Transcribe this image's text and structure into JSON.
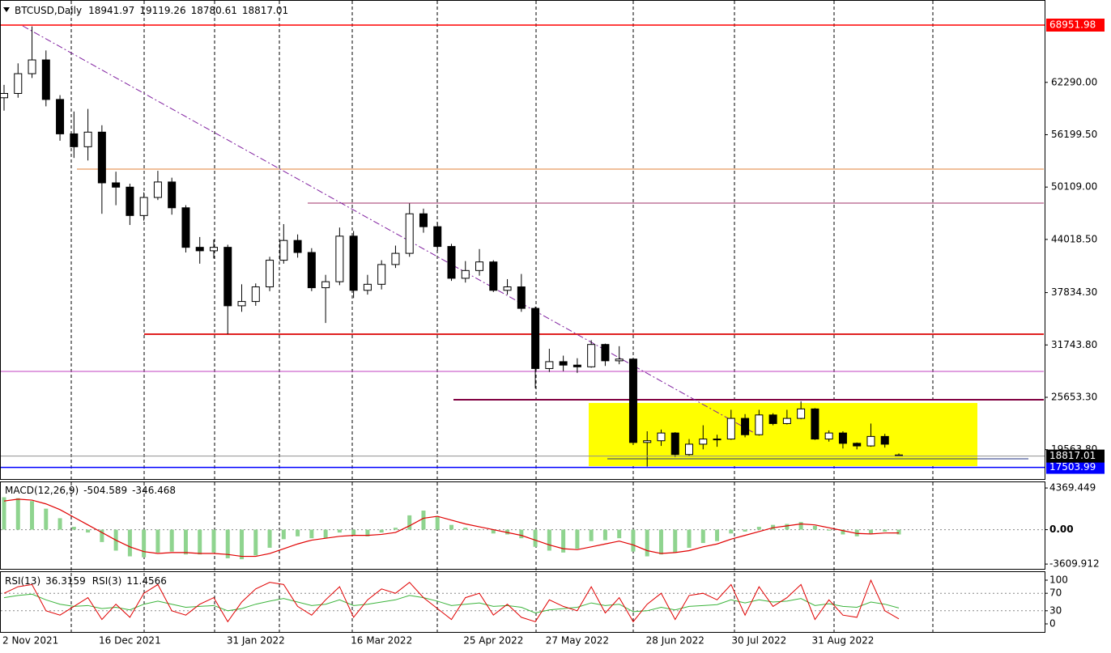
{
  "chart_data": [
    {
      "type": "candlestick",
      "symbol": "BTCUSD,Daily",
      "categories": [
        "2 Nov 2021",
        null,
        null,
        null,
        null,
        null,
        null,
        null,
        null,
        "16 Dec 2021",
        null,
        null,
        null,
        null,
        null,
        null,
        null,
        null,
        "31 Jan 2022",
        null,
        null,
        null,
        null,
        null,
        null,
        null,
        null,
        "16 Mar 2022",
        null,
        null,
        null,
        null,
        null,
        null,
        null,
        "25 Apr 2022",
        null,
        null,
        null,
        null,
        null,
        "27 May 2022",
        null,
        null,
        null,
        null,
        null,
        null,
        "28 Jun 2022",
        null,
        null,
        null,
        null,
        null,
        "30 Jul 2022",
        null,
        null,
        null,
        null,
        null,
        "31 Aug 2022",
        null,
        null,
        null,
        null
      ],
      "open": [
        60500,
        61000,
        63300,
        64900,
        60300,
        56300,
        54800,
        56500,
        50600,
        50100,
        46800,
        48900,
        50700,
        47700,
        43100,
        42700,
        43100,
        36300,
        36800,
        38500,
        41600,
        43900,
        42500,
        38400,
        39100,
        44400,
        38100,
        38800,
        41100,
        42400,
        47000,
        45500,
        43200,
        39500,
        40400,
        41400,
        38100,
        38500,
        36000,
        29000,
        29800,
        29400,
        29200,
        31800,
        29900,
        30100,
        20400,
        20600,
        21500,
        19000,
        20200,
        20800,
        20800,
        23200,
        21300,
        23600,
        22600,
        23200,
        24300,
        20800,
        21500,
        20300,
        20000,
        21100,
        18941.97
      ],
      "high": [
        62000,
        64500,
        68800,
        66000,
        60800,
        58900,
        59200,
        57300,
        51900,
        50500,
        49500,
        52000,
        51200,
        48000,
        44300,
        44000,
        43400,
        38800,
        38900,
        42000,
        45800,
        44600,
        43000,
        39900,
        45400,
        45000,
        39900,
        41600,
        43300,
        48200,
        47600,
        46000,
        43500,
        41500,
        42900,
        41600,
        39400,
        40000,
        36200,
        31300,
        30500,
        30200,
        32300,
        31900,
        31600,
        30200,
        21700,
        21900,
        21600,
        20800,
        22400,
        21300,
        24200,
        23700,
        24200,
        23800,
        24200,
        25200,
        24400,
        21800,
        21700,
        20400,
        22600,
        21400,
        19119.26
      ],
      "low": [
        59000,
        60500,
        62800,
        59500,
        55500,
        53500,
        53200,
        47000,
        48000,
        45700,
        46200,
        48600,
        46900,
        42500,
        41200,
        41800,
        33000,
        35600,
        36300,
        38000,
        41200,
        41900,
        38000,
        34300,
        38700,
        37200,
        37600,
        38200,
        40700,
        42000,
        44800,
        42700,
        39200,
        39000,
        39800,
        37900,
        37600,
        35600,
        26700,
        28600,
        28700,
        28500,
        29100,
        29300,
        29500,
        20100,
        17600,
        20000,
        18700,
        18800,
        19600,
        19900,
        20700,
        21000,
        21200,
        22400,
        22500,
        23100,
        20700,
        20500,
        19700,
        19600,
        19900,
        19800,
        18780.61
      ],
      "close": [
        61000,
        63300,
        64900,
        60300,
        56300,
        54800,
        56500,
        50600,
        50100,
        46800,
        48900,
        50700,
        47700,
        43100,
        42700,
        43100,
        36300,
        36800,
        38500,
        41600,
        43900,
        42500,
        38400,
        39100,
        44400,
        38100,
        38800,
        41100,
        42400,
        47000,
        45500,
        43200,
        39500,
        40400,
        41400,
        38100,
        38500,
        36000,
        29000,
        29800,
        29400,
        29200,
        31800,
        29900,
        30100,
        20400,
        20600,
        21500,
        19000,
        20200,
        20800,
        20800,
        23200,
        21300,
        23600,
        22600,
        23200,
        24300,
        20800,
        21500,
        20300,
        20000,
        21100,
        20200,
        18817.01
      ],
      "up_color": "#ffffff",
      "down_color": "#000000",
      "ylim": [
        16147,
        71870
      ],
      "yticks": [
        {
          "value": 62290,
          "label": "62290.00"
        },
        {
          "value": 56199.5,
          "label": "56199.50"
        },
        {
          "value": 50109,
          "label": "50109.00"
        },
        {
          "value": 44018.5,
          "label": "44018.50"
        },
        {
          "value": 37834.3,
          "label": "37834.30"
        },
        {
          "value": 31743.8,
          "label": "31743.80"
        },
        {
          "value": 25653.3,
          "label": "25653.30"
        },
        {
          "value": 19563.8,
          "label": "19563.80"
        }
      ],
      "levels": [
        {
          "value": 68951.98,
          "color": "#ff0000"
        },
        {
          "value": 17503.99,
          "color": "#0000ff"
        }
      ]
    },
    {
      "type": "macd",
      "title": "MACD(12,26,9)",
      "histogram": [
        3400,
        3300,
        3000,
        2200,
        1200,
        300,
        -300,
        -1300,
        -2200,
        -2800,
        -2900,
        -2400,
        -2300,
        -2600,
        -2600,
        -2400,
        -3000,
        -3100,
        -2700,
        -1900,
        -1000,
        -700,
        -900,
        -900,
        -300,
        -600,
        -700,
        -300,
        200,
        1500,
        2000,
        1400,
        500,
        200,
        0,
        -400,
        -500,
        -900,
        -1800,
        -2200,
        -2400,
        -2000,
        -1200,
        -1100,
        -900,
        -2300,
        -2800,
        -2600,
        -2400,
        -1900,
        -1400,
        -1200,
        -400,
        -200,
        300,
        500,
        600,
        800,
        400,
        -100,
        -500,
        -700,
        -400,
        -200,
        -504.589
      ],
      "signal": [
        3000,
        3200,
        3100,
        2700,
        2100,
        1300,
        500,
        -300,
        -1100,
        -1800,
        -2300,
        -2500,
        -2400,
        -2400,
        -2500,
        -2500,
        -2600,
        -2800,
        -2800,
        -2500,
        -2000,
        -1500,
        -1100,
        -900,
        -700,
        -600,
        -600,
        -500,
        -300,
        400,
        1200,
        1400,
        1000,
        600,
        300,
        0,
        -300,
        -600,
        -1100,
        -1600,
        -2000,
        -2100,
        -1800,
        -1500,
        -1200,
        -1600,
        -2200,
        -2500,
        -2400,
        -2200,
        -1800,
        -1500,
        -1000,
        -600,
        -200,
        200,
        400,
        600,
        500,
        200,
        -100,
        -400,
        -450,
        -350,
        -346.468
      ],
      "histogram_color": "#8fd48f",
      "signal_color": "#e00000",
      "ylim": [
        -4110,
        4970
      ],
      "yticks": [
        4369.449,
        {
          "value": 0,
          "label": "0.00"
        },
        -3609.912
      ]
    },
    {
      "type": "line",
      "series": [
        {
          "name": "RSI(13)",
          "color": "#3cb43c",
          "values": [
            60,
            65,
            68,
            55,
            45,
            40,
            42,
            35,
            38,
            32,
            45,
            52,
            45,
            38,
            40,
            42,
            30,
            35,
            45,
            52,
            58,
            50,
            42,
            45,
            55,
            42,
            45,
            50,
            55,
            65,
            60,
            52,
            42,
            45,
            48,
            40,
            42,
            38,
            25,
            32,
            35,
            38,
            48,
            42,
            45,
            28,
            30,
            38,
            32,
            40,
            42,
            44,
            55,
            48,
            55,
            50,
            52,
            58,
            42,
            46,
            40,
            38,
            50,
            45,
            36.3159
          ]
        },
        {
          "name": "RSI(3)",
          "color": "#e00000",
          "values": [
            70,
            85,
            90,
            30,
            20,
            40,
            60,
            10,
            45,
            15,
            70,
            90,
            30,
            20,
            45,
            60,
            5,
            50,
            80,
            95,
            90,
            40,
            20,
            55,
            85,
            15,
            55,
            80,
            70,
            95,
            60,
            35,
            10,
            60,
            70,
            20,
            45,
            15,
            5,
            55,
            40,
            30,
            85,
            25,
            60,
            5,
            45,
            70,
            10,
            65,
            70,
            55,
            90,
            20,
            85,
            40,
            60,
            90,
            10,
            55,
            20,
            15,
            100,
            30,
            11.4566
          ]
        }
      ],
      "ylim": [
        -18.5,
        118.5
      ],
      "yticks": [
        100,
        70,
        30,
        0
      ]
    }
  ]
}
